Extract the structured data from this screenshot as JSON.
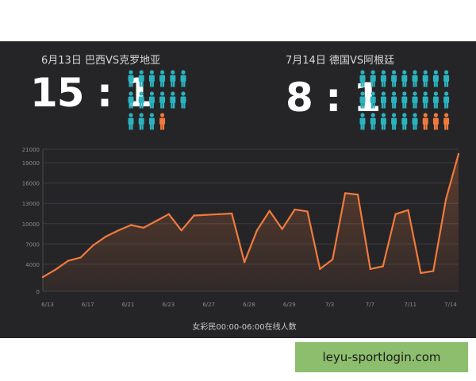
{
  "matches": [
    {
      "title": "6月13日 巴西VS克罗地亚",
      "score": "15 : 1",
      "icons": {
        "cyan": 15,
        "orange": 1
      }
    },
    {
      "title": "7月14日 德国VS阿根廷",
      "score": "8 : 1",
      "icons": {
        "cyan": 24,
        "orange": 3
      }
    }
  ],
  "colors": {
    "background": "#252528",
    "line": "#f07a3c",
    "person_cyan": "#2bb3bf",
    "person_orange": "#f07a3c",
    "watermark_bg": "#8dbe6e"
  },
  "icon_name": "person-icon",
  "watermark": "leyu-sportlogin.com",
  "chart_data": {
    "type": "area",
    "title": "",
    "xlabel": "女彩民00:00-06:00在线人数",
    "ylabel": "",
    "ylim": [
      0,
      21000
    ],
    "yticks": [
      0,
      4000,
      7000,
      10000,
      13000,
      16000,
      19000,
      21000
    ],
    "xtick_labels": [
      "6/13",
      "6/17",
      "6/21",
      "6/23",
      "6/27",
      "6/28",
      "6/29",
      "7/3",
      "7/7",
      "7/11",
      "7/14"
    ],
    "grid": true,
    "series": [
      {
        "values": [
          2100,
          3200,
          4500,
          5000,
          6800,
          8100,
          9000,
          9800,
          9400,
          10400,
          11400,
          9000,
          11200,
          11300,
          11400,
          11500,
          4300,
          9000,
          11900,
          9200,
          12100,
          11800,
          3300,
          4700,
          14500,
          14300,
          3300,
          3700,
          11400,
          12000,
          2700,
          3000,
          13600,
          20300
        ]
      }
    ]
  }
}
